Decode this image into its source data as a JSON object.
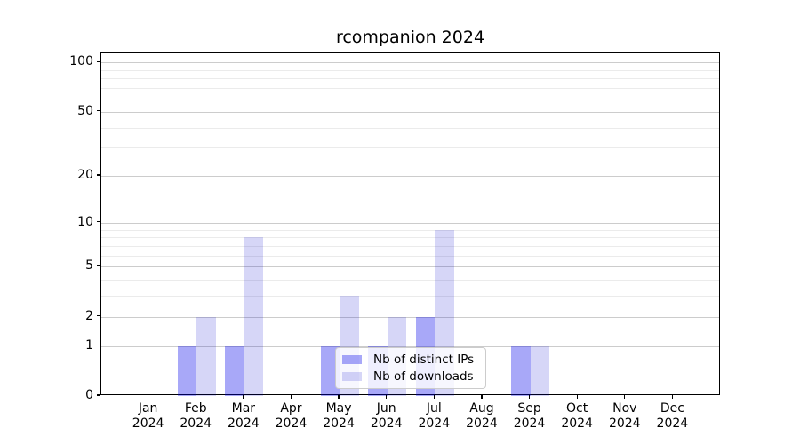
{
  "chart_data": {
    "type": "bar",
    "title": "rcompanion 2024",
    "x": {
      "categories": [
        "Jan",
        "Feb",
        "Mar",
        "Apr",
        "May",
        "Jun",
        "Jul",
        "Aug",
        "Sep",
        "Oct",
        "Nov",
        "Dec"
      ],
      "year": "2024"
    },
    "y": {
      "scale": "log10(1+value)",
      "tick_values": [
        0,
        1,
        2,
        5,
        10,
        20,
        50,
        100
      ],
      "tick_labels": [
        "0",
        "1",
        "2",
        "5",
        "10",
        "20",
        "50",
        "100"
      ],
      "minor_gridline_values": [
        3,
        4,
        6,
        7,
        8,
        9,
        30,
        40,
        60,
        70,
        80,
        90
      ],
      "major_gridline_values": [
        1,
        2,
        5,
        10,
        20,
        50,
        100
      ],
      "range_top": 113
    },
    "series": [
      {
        "name": "Nb of distinct IPs",
        "color": "rgba(0,0,235,0.34)",
        "values": [
          0,
          1,
          1,
          0,
          1,
          1,
          2,
          0,
          1,
          0,
          0,
          0
        ]
      },
      {
        "name": "Nb of downloads",
        "color": "rgba(0,0,205,0.16)",
        "values": [
          0,
          2,
          8,
          0,
          3,
          2,
          9,
          0,
          1,
          0,
          0,
          0
        ]
      }
    ],
    "legend": {
      "location": "lower center inside plot"
    },
    "grid": {
      "show": "both",
      "major_color": "#cccccc",
      "minor_color": "#ebebeb"
    },
    "axis_color": "#000000",
    "background_color": "#ffffff"
  }
}
